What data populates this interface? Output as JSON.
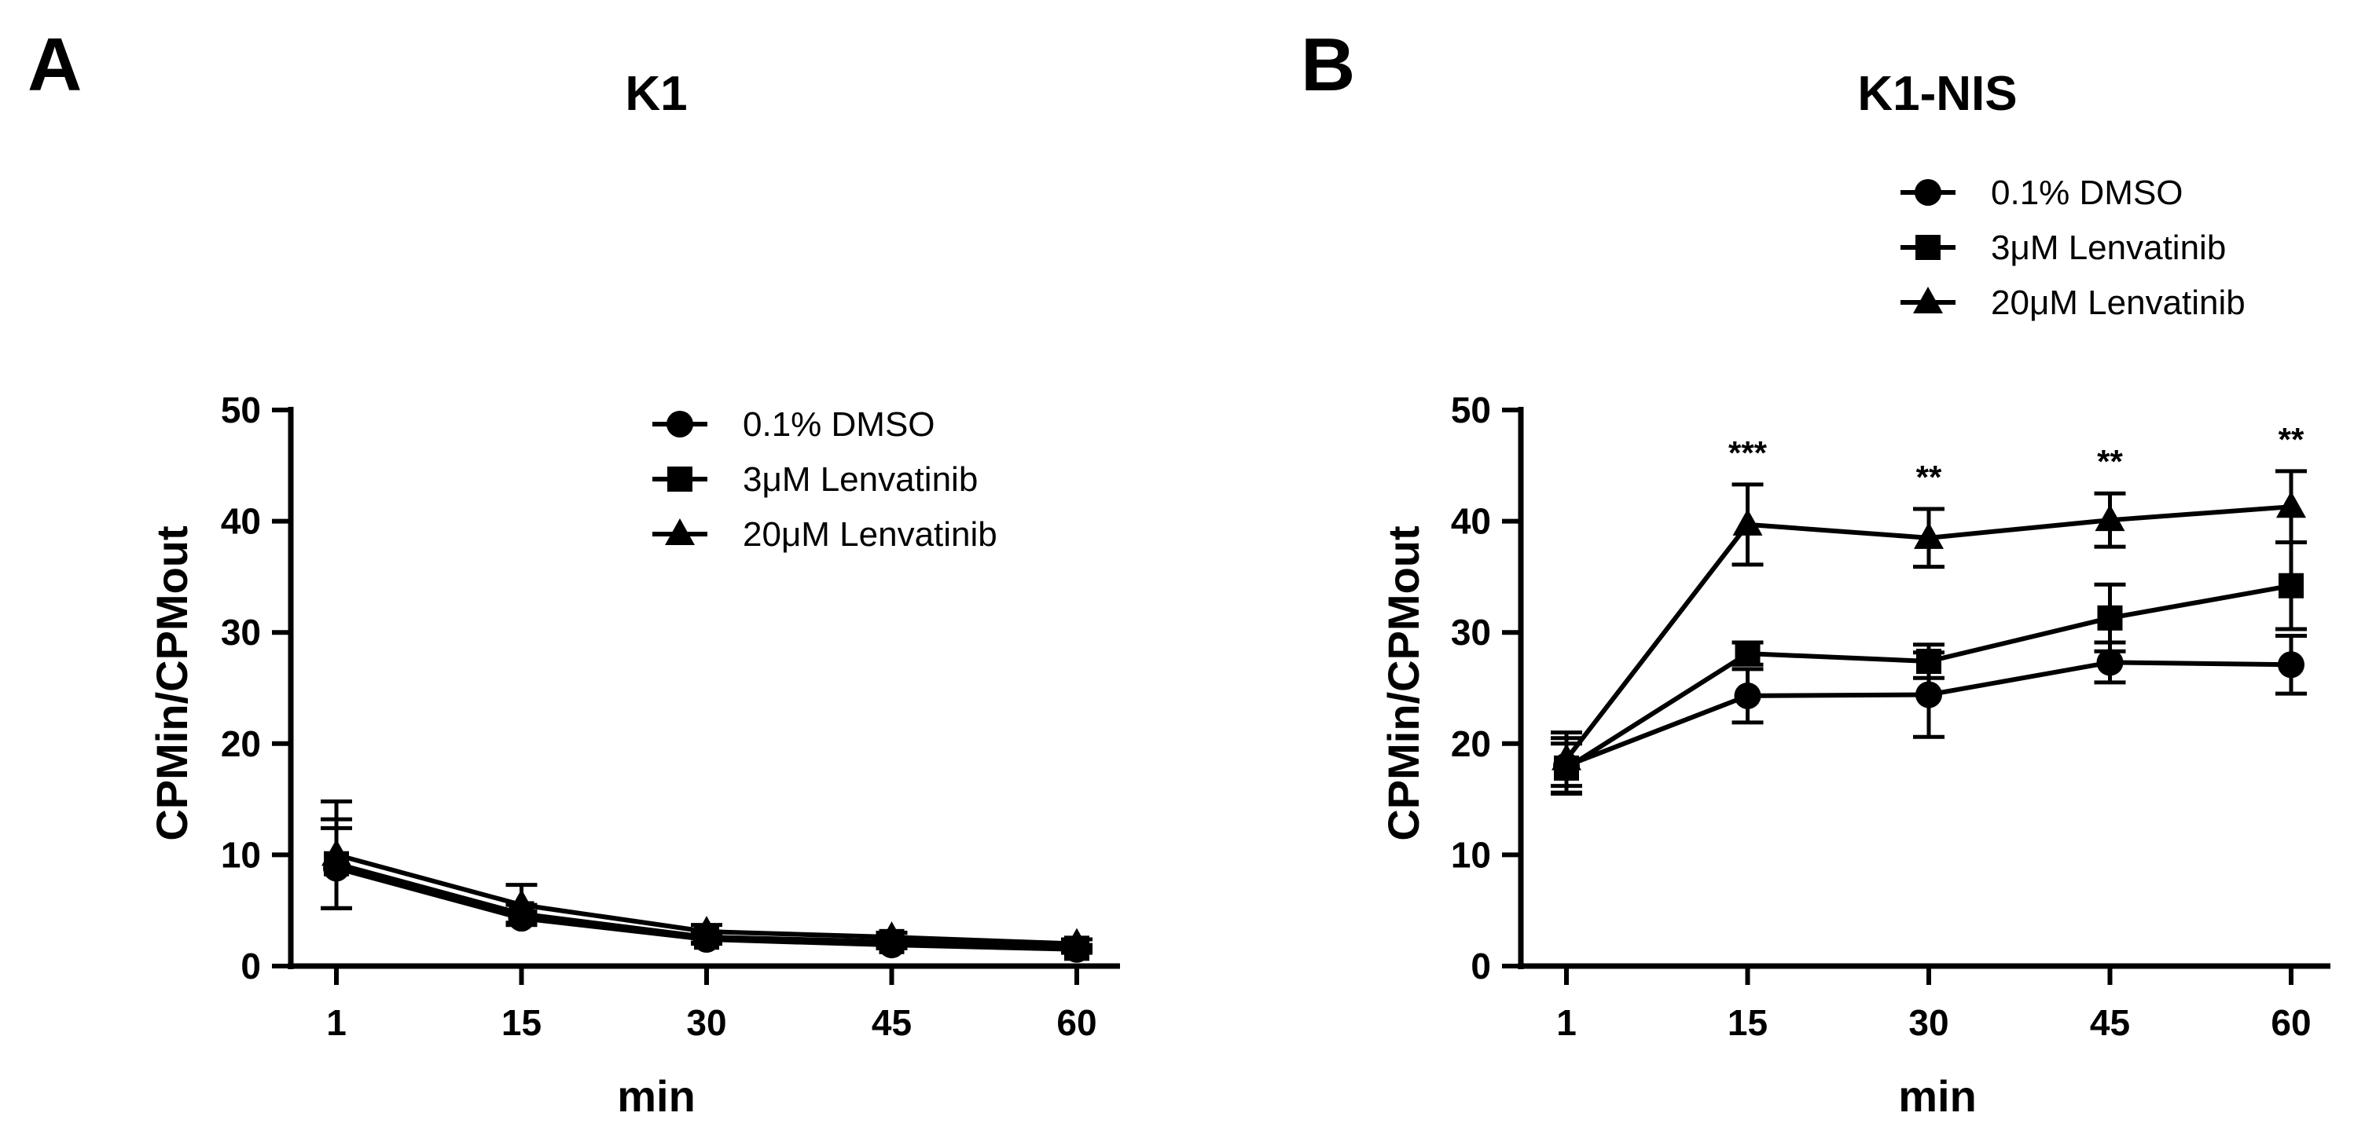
{
  "figure": {
    "panels": [
      "A",
      "B"
    ]
  },
  "chart_data": [
    {
      "panel": "A",
      "type": "line",
      "title": "K1",
      "xlabel": "min",
      "ylabel": "CPMin/CPMout",
      "x": [
        1,
        15,
        30,
        45,
        60
      ],
      "x_tick_labels": [
        "1",
        "15",
        "30",
        "45",
        "60"
      ],
      "ylim": [
        0,
        50
      ],
      "y_ticks": [
        0,
        10,
        20,
        30,
        40,
        50
      ],
      "y_tick_labels": [
        "0",
        "10",
        "20",
        "30",
        "40",
        "50"
      ],
      "grid": false,
      "legend_position": "top-right",
      "series": [
        {
          "name": "0.1% DMSO",
          "marker": "circle",
          "values": [
            8.8,
            4.3,
            2.4,
            1.9,
            1.5
          ],
          "errors": [
            3.6,
            0.6,
            0.4,
            0.3,
            0.3
          ]
        },
        {
          "name": "3μM Lenvatinib",
          "marker": "square",
          "values": [
            9.2,
            4.7,
            2.6,
            2.2,
            1.6
          ],
          "errors": [
            4.0,
            0.8,
            0.5,
            0.4,
            0.3
          ]
        },
        {
          "name": "20μM Lenvatinib",
          "marker": "triangle",
          "values": [
            10.0,
            5.5,
            3.1,
            2.6,
            2.0
          ],
          "errors": [
            4.8,
            1.8,
            0.6,
            0.4,
            0.4
          ]
        }
      ],
      "annotations": []
    },
    {
      "panel": "B",
      "type": "line",
      "title": "K1-NIS",
      "xlabel": "min",
      "ylabel": "CPMin/CPMout",
      "x": [
        1,
        15,
        30,
        45,
        60
      ],
      "x_tick_labels": [
        "1",
        "15",
        "30",
        "45",
        "60"
      ],
      "ylim": [
        0,
        50
      ],
      "y_ticks": [
        0,
        10,
        20,
        30,
        40,
        50
      ],
      "y_tick_labels": [
        "0",
        "10",
        "20",
        "30",
        "40",
        "50"
      ],
      "grid": false,
      "legend_position": "top-right",
      "series": [
        {
          "name": "0.1% DMSO",
          "marker": "circle",
          "values": [
            18.0,
            24.3,
            24.4,
            27.3,
            27.1
          ],
          "errors": [
            2.5,
            2.4,
            3.8,
            1.8,
            2.6
          ]
        },
        {
          "name": "3μM Lenvatinib",
          "marker": "square",
          "values": [
            17.8,
            28.1,
            27.4,
            31.3,
            34.2
          ],
          "errors": [
            2.2,
            1.0,
            1.5,
            3.0,
            3.9
          ]
        },
        {
          "name": "20μM Lenvatinib",
          "marker": "triangle",
          "values": [
            18.6,
            39.7,
            38.5,
            40.1,
            41.3
          ],
          "errors": [
            2.4,
            3.6,
            2.6,
            2.4,
            3.2
          ]
        }
      ],
      "annotations": [
        {
          "x": 15,
          "text": "***"
        },
        {
          "x": 30,
          "text": "**"
        },
        {
          "x": 45,
          "text": "**"
        },
        {
          "x": 60,
          "text": "**"
        }
      ]
    }
  ]
}
